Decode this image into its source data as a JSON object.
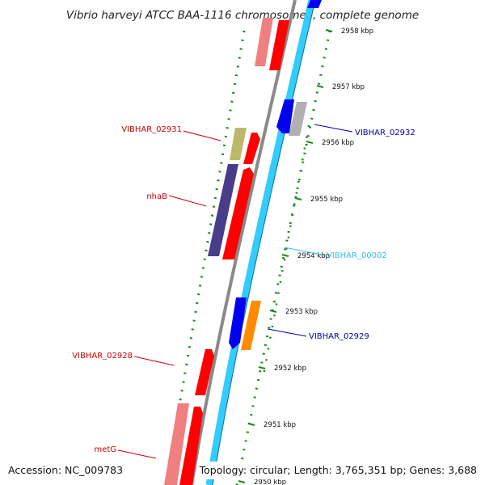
{
  "title": "Vibrio harveyi ATCC BAA-1116 chromosome I, complete genome",
  "footer": {
    "accession": "Accession: NC_009783",
    "summary": "Topology: circular; Length: 3,765,351 bp; Genes: 3,688"
  },
  "colors": {
    "backbone_forward": "#33ccff",
    "backbone_reverse": "#8a8a8a",
    "gc_dots": "#1a8a1a",
    "forward_gene_label": "#0000aa",
    "reverse_gene_label": "#cc0000",
    "rna_label": "#33bbee"
  },
  "ticks": [
    {
      "label": "2958 kbp"
    },
    {
      "label": "2957 kbp"
    },
    {
      "label": "2956 kbp"
    },
    {
      "label": "2955 kbp"
    },
    {
      "label": "2954 kbp"
    },
    {
      "label": "2953 kbp"
    },
    {
      "label": "2952 kbp"
    },
    {
      "label": "2951 kbp"
    },
    {
      "label": "2950 kbp"
    }
  ],
  "gene_labels": [
    {
      "text": "VIBHAR_02932",
      "strand": "forward"
    },
    {
      "text": "VIBHAR_02931",
      "strand": "reverse"
    },
    {
      "text": "nhaB",
      "strand": "reverse"
    },
    {
      "text": "VIBHAR_00002",
      "strand": "rna"
    },
    {
      "text": "VIBHAR_02929",
      "strand": "forward"
    },
    {
      "text": "VIBHAR_02928",
      "strand": "reverse"
    },
    {
      "text": "metG",
      "strand": "reverse"
    }
  ]
}
